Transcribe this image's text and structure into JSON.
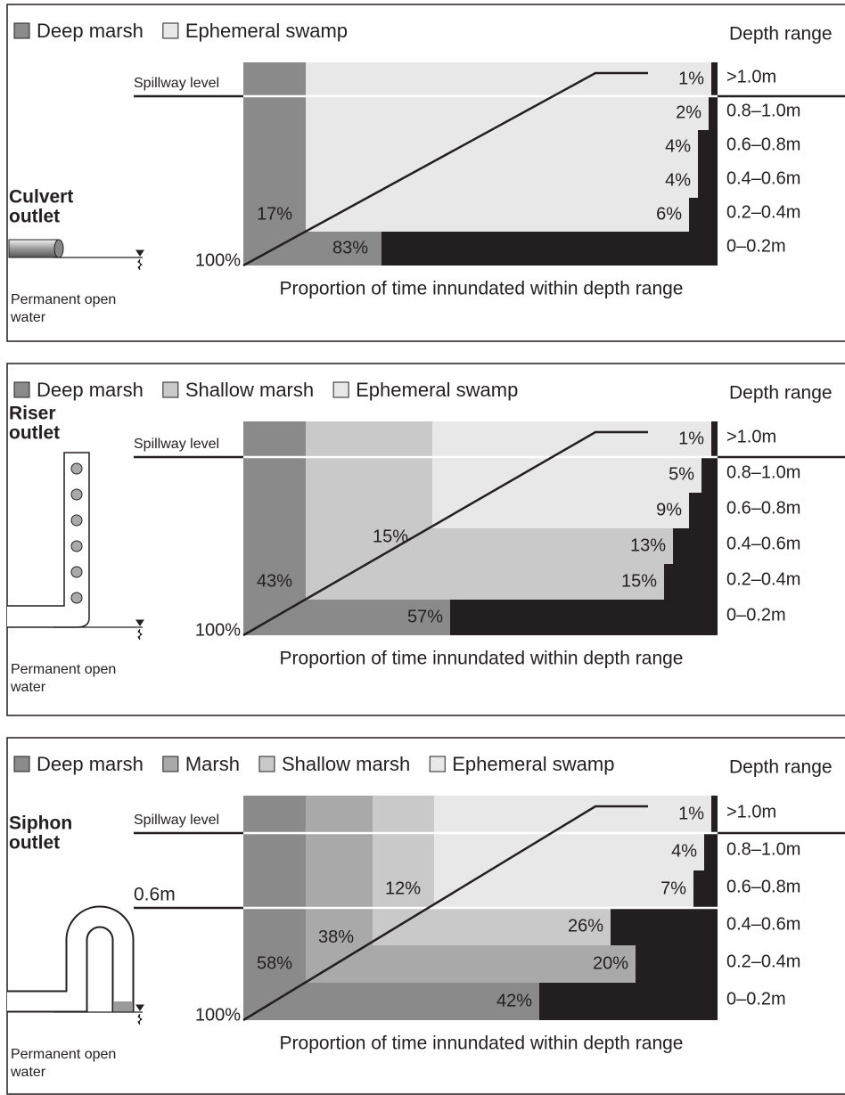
{
  "panels": [
    {
      "legend": [
        "Deep marsh",
        "Ephemeral swamp"
      ],
      "depth_header": "Depth range",
      "spillway": "Spillway level",
      "outlet": [
        "Culvert",
        "outlet"
      ],
      "depth_ranges": [
        ">1.0m",
        "0.8–1.0m",
        "0.6–0.8m",
        "0.4–0.6m",
        "0.2–0.4m",
        "0–0.2m"
      ],
      "stair_labels": [
        "1%",
        "2%",
        "4%",
        "4%",
        "6%"
      ],
      "zone_labels": [
        "17%",
        "83%"
      ],
      "full": "100%",
      "caption": "Proportion of time innundated within depth range",
      "water": [
        "Permanent open",
        "water"
      ]
    },
    {
      "legend": [
        "Deep marsh",
        "Shallow marsh",
        "Ephemeral swamp"
      ],
      "depth_header": "Depth range",
      "spillway": "Spillway level",
      "outlet": [
        "Riser",
        "outlet"
      ],
      "depth_ranges": [
        ">1.0m",
        "0.8–1.0m",
        "0.6–0.8m",
        "0.4–0.6m",
        "0.2–0.4m",
        "0–0.2m"
      ],
      "stair_labels": [
        "1%",
        "5%",
        "9%",
        "13%",
        "15%"
      ],
      "zone_labels": [
        "43%",
        "15%",
        "57%"
      ],
      "full": "100%",
      "caption": "Proportion of time innundated within depth range",
      "water": [
        "Permanent open",
        "water"
      ]
    },
    {
      "legend": [
        "Deep marsh",
        "Marsh",
        "Shallow marsh",
        "Ephemeral swamp"
      ],
      "depth_header": "Depth range",
      "spillway": "Spillway level",
      "outlet": [
        "Siphon",
        "outlet"
      ],
      "level_label": "0.6m",
      "depth_ranges": [
        ">1.0m",
        "0.8–1.0m",
        "0.6–0.8m",
        "0.4–0.6m",
        "0.2–0.4m",
        "0–0.2m"
      ],
      "stair_labels": [
        "1%",
        "4%",
        "7%",
        "26%",
        "20%"
      ],
      "zone_labels": [
        "58%",
        "38%",
        "12%",
        "42%"
      ],
      "full": "100%",
      "caption": "Proportion of time innundated within depth range",
      "water": [
        "Permanent open",
        "water"
      ]
    }
  ]
}
